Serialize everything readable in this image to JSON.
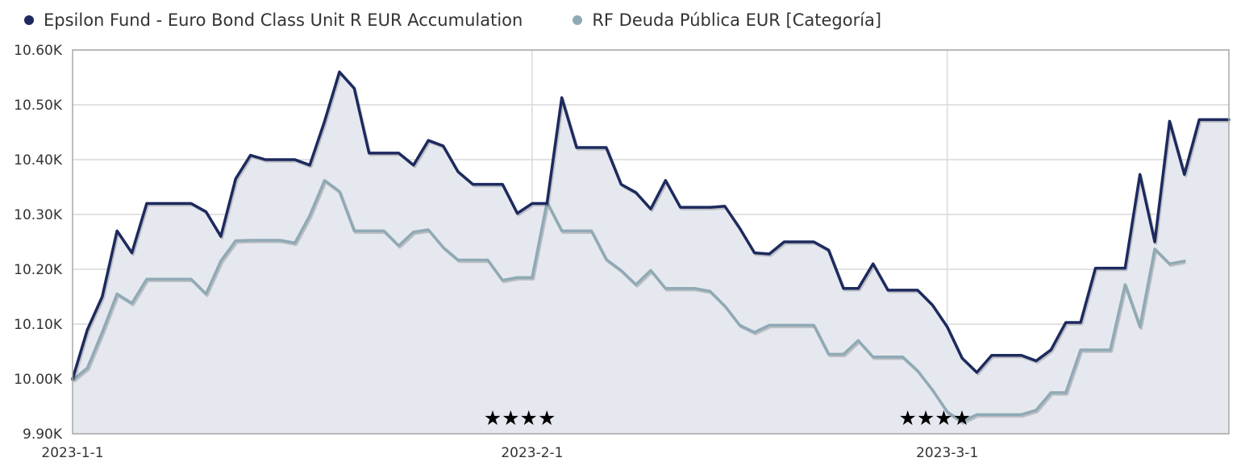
{
  "legend": {
    "series": [
      {
        "label": "Epsilon Fund - Euro Bond Class Unit R EUR Accumulation",
        "color": "#1c2a5e"
      },
      {
        "label": "RF Deuda Pública EUR [Categoría]",
        "color": "#8faab5"
      }
    ]
  },
  "chart_data": {
    "type": "line",
    "title": "",
    "xlabel": "",
    "ylabel": "",
    "ylim": [
      9900,
      10600
    ],
    "y_ticks": [
      "9.90K",
      "10.00K",
      "10.10K",
      "10.20K",
      "10.30K",
      "10.40K",
      "10.50K",
      "10.60K"
    ],
    "x_ticks": [
      "2023-1-1",
      "2023-2-1",
      "2023-3-1"
    ],
    "x_range": [
      "2023-01-01",
      "2023-03-20"
    ],
    "grid": true,
    "fill_area_under_first_series": true,
    "fill_color": "#e6e8ef",
    "ratings": [
      {
        "date": "2023-01-31",
        "stars": "★★★★"
      },
      {
        "date": "2023-02-28",
        "stars": "★★★★"
      }
    ],
    "series": [
      {
        "name": "Epsilon Fund - Euro Bond Class Unit R EUR Accumulation",
        "color": "#1c2a5e",
        "points": [
          [
            "2023-01-01",
            10000
          ],
          [
            "2023-01-02",
            10090
          ],
          [
            "2023-01-03",
            10150
          ],
          [
            "2023-01-04",
            10270
          ],
          [
            "2023-01-05",
            10230
          ],
          [
            "2023-01-06",
            10320
          ],
          [
            "2023-01-07",
            10320
          ],
          [
            "2023-01-08",
            10320
          ],
          [
            "2023-01-09",
            10320
          ],
          [
            "2023-01-10",
            10305
          ],
          [
            "2023-01-11",
            10260
          ],
          [
            "2023-01-12",
            10365
          ],
          [
            "2023-01-13",
            10408
          ],
          [
            "2023-01-14",
            10400
          ],
          [
            "2023-01-15",
            10400
          ],
          [
            "2023-01-16",
            10400
          ],
          [
            "2023-01-17",
            10390
          ],
          [
            "2023-01-18",
            10470
          ],
          [
            "2023-01-19",
            10560
          ],
          [
            "2023-01-20",
            10530
          ],
          [
            "2023-01-21",
            10412
          ],
          [
            "2023-01-22",
            10412
          ],
          [
            "2023-01-23",
            10412
          ],
          [
            "2023-01-24",
            10390
          ],
          [
            "2023-01-25",
            10435
          ],
          [
            "2023-01-26",
            10425
          ],
          [
            "2023-01-27",
            10378
          ],
          [
            "2023-01-28",
            10355
          ],
          [
            "2023-01-29",
            10355
          ],
          [
            "2023-01-30",
            10355
          ],
          [
            "2023-01-31",
            10302
          ],
          [
            "2023-02-01",
            10320
          ],
          [
            "2023-02-02",
            10320
          ],
          [
            "2023-02-03",
            10513
          ],
          [
            "2023-02-04",
            10422
          ],
          [
            "2023-02-05",
            10422
          ],
          [
            "2023-02-06",
            10422
          ],
          [
            "2023-02-07",
            10355
          ],
          [
            "2023-02-08",
            10340
          ],
          [
            "2023-02-09",
            10310
          ],
          [
            "2023-02-10",
            10362
          ],
          [
            "2023-02-11",
            10313
          ],
          [
            "2023-02-12",
            10313
          ],
          [
            "2023-02-13",
            10313
          ],
          [
            "2023-02-14",
            10315
          ],
          [
            "2023-02-15",
            10275
          ],
          [
            "2023-02-16",
            10230
          ],
          [
            "2023-02-17",
            10228
          ],
          [
            "2023-02-18",
            10250
          ],
          [
            "2023-02-19",
            10250
          ],
          [
            "2023-02-20",
            10250
          ],
          [
            "2023-02-21",
            10235
          ],
          [
            "2023-02-22",
            10165
          ],
          [
            "2023-02-23",
            10165
          ],
          [
            "2023-02-24",
            10210
          ],
          [
            "2023-02-25",
            10162
          ],
          [
            "2023-02-26",
            10162
          ],
          [
            "2023-02-27",
            10162
          ],
          [
            "2023-02-28",
            10135
          ],
          [
            "2023-03-01",
            10095
          ],
          [
            "2023-03-02",
            10038
          ],
          [
            "2023-03-03",
            10012
          ],
          [
            "2023-03-04",
            10043
          ],
          [
            "2023-03-05",
            10043
          ],
          [
            "2023-03-06",
            10043
          ],
          [
            "2023-03-07",
            10033
          ],
          [
            "2023-03-08",
            10053
          ],
          [
            "2023-03-09",
            10103
          ],
          [
            "2023-03-10",
            10103
          ],
          [
            "2023-03-11",
            10202
          ],
          [
            "2023-03-12",
            10202
          ],
          [
            "2023-03-13",
            10202
          ],
          [
            "2023-03-14",
            10373
          ],
          [
            "2023-03-15",
            10250
          ],
          [
            "2023-03-16",
            10470
          ],
          [
            "2023-03-17",
            10373
          ],
          [
            "2023-03-18",
            10473
          ],
          [
            "2023-03-19",
            10473
          ],
          [
            "2023-03-20",
            10473
          ]
        ]
      },
      {
        "name": "RF Deuda Pública EUR [Categoría]",
        "color": "#8faab5",
        "points": [
          [
            "2023-01-01",
            9998
          ],
          [
            "2023-01-02",
            10020
          ],
          [
            "2023-01-03",
            10085
          ],
          [
            "2023-01-04",
            10155
          ],
          [
            "2023-01-05",
            10138
          ],
          [
            "2023-01-06",
            10182
          ],
          [
            "2023-01-07",
            10182
          ],
          [
            "2023-01-08",
            10182
          ],
          [
            "2023-01-09",
            10182
          ],
          [
            "2023-01-10",
            10155
          ],
          [
            "2023-01-11",
            10215
          ],
          [
            "2023-01-12",
            10252
          ],
          [
            "2023-01-13",
            10253
          ],
          [
            "2023-01-14",
            10253
          ],
          [
            "2023-01-15",
            10253
          ],
          [
            "2023-01-16",
            10248
          ],
          [
            "2023-01-17",
            10298
          ],
          [
            "2023-01-18",
            10362
          ],
          [
            "2023-01-19",
            10342
          ],
          [
            "2023-01-20",
            10270
          ],
          [
            "2023-01-21",
            10270
          ],
          [
            "2023-01-22",
            10270
          ],
          [
            "2023-01-23",
            10243
          ],
          [
            "2023-01-24",
            10268
          ],
          [
            "2023-01-25",
            10272
          ],
          [
            "2023-01-26",
            10240
          ],
          [
            "2023-01-27",
            10217
          ],
          [
            "2023-01-28",
            10217
          ],
          [
            "2023-01-29",
            10217
          ],
          [
            "2023-01-30",
            10180
          ],
          [
            "2023-01-31",
            10185
          ],
          [
            "2023-02-01",
            10185
          ],
          [
            "2023-02-02",
            10322
          ],
          [
            "2023-02-03",
            10270
          ],
          [
            "2023-02-04",
            10270
          ],
          [
            "2023-02-05",
            10270
          ],
          [
            "2023-02-06",
            10218
          ],
          [
            "2023-02-07",
            10198
          ],
          [
            "2023-02-08",
            10172
          ],
          [
            "2023-02-09",
            10198
          ],
          [
            "2023-02-10",
            10165
          ],
          [
            "2023-02-11",
            10165
          ],
          [
            "2023-02-12",
            10165
          ],
          [
            "2023-02-13",
            10160
          ],
          [
            "2023-02-14",
            10133
          ],
          [
            "2023-02-15",
            10098
          ],
          [
            "2023-02-16",
            10085
          ],
          [
            "2023-02-17",
            10098
          ],
          [
            "2023-02-18",
            10098
          ],
          [
            "2023-02-19",
            10098
          ],
          [
            "2023-02-20",
            10098
          ],
          [
            "2023-02-21",
            10045
          ],
          [
            "2023-02-22",
            10045
          ],
          [
            "2023-02-23",
            10070
          ],
          [
            "2023-02-24",
            10040
          ],
          [
            "2023-02-25",
            10040
          ],
          [
            "2023-02-26",
            10040
          ],
          [
            "2023-02-27",
            10015
          ],
          [
            "2023-02-28",
            9980
          ],
          [
            "2023-03-01",
            9940
          ],
          [
            "2023-03-02",
            9922
          ],
          [
            "2023-03-03",
            9935
          ],
          [
            "2023-03-04",
            9935
          ],
          [
            "2023-03-05",
            9935
          ],
          [
            "2023-03-06",
            9935
          ],
          [
            "2023-03-07",
            9943
          ],
          [
            "2023-03-08",
            9975
          ],
          [
            "2023-03-09",
            9975
          ],
          [
            "2023-03-10",
            10053
          ],
          [
            "2023-03-11",
            10053
          ],
          [
            "2023-03-12",
            10053
          ],
          [
            "2023-03-13",
            10172
          ],
          [
            "2023-03-14",
            10095
          ],
          [
            "2023-03-15",
            10237
          ],
          [
            "2023-03-16",
            10210
          ],
          [
            "2023-03-17",
            10215
          ]
        ]
      }
    ]
  }
}
